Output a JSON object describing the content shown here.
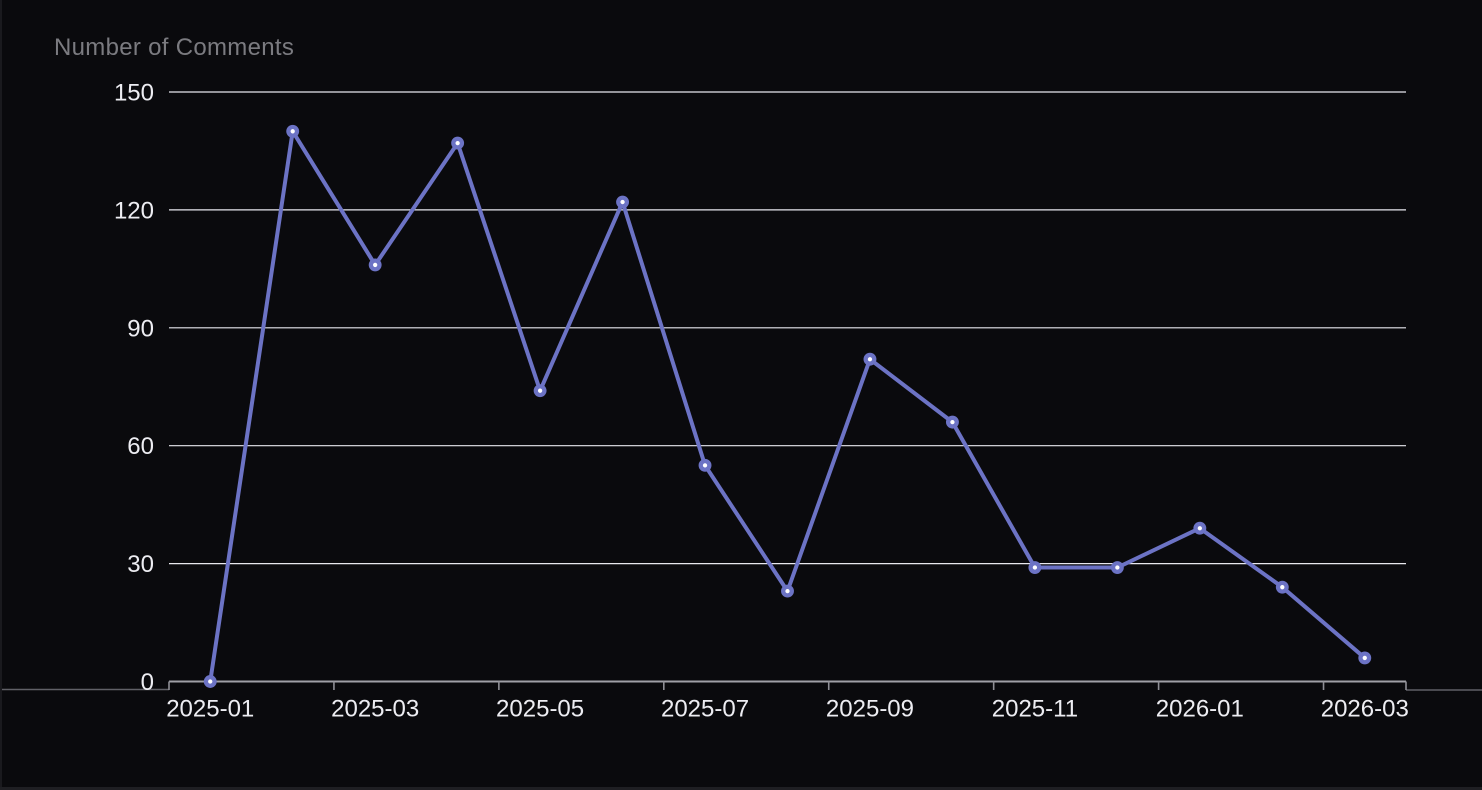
{
  "window": {
    "background": "#0a0a0d",
    "edge_color": "#1f1f23"
  },
  "chart_data": {
    "type": "line",
    "title": "Number of Comments",
    "x": [
      "2025-01",
      "2025-02",
      "2025-03",
      "2025-04",
      "2025-05",
      "2025-06",
      "2025-07",
      "2025-08",
      "2025-09",
      "2025-10",
      "2025-11",
      "2025-12",
      "2026-01",
      "2026-02",
      "2026-03"
    ],
    "series": [
      {
        "name": "Number of Comments",
        "values": [
          0,
          140,
          106,
          137,
          74,
          122,
          55,
          23,
          82,
          66,
          29,
          29,
          39,
          24,
          6
        ]
      }
    ],
    "xlabel": "",
    "ylabel": "",
    "ylim": [
      0,
      150
    ],
    "yticks": [
      0,
      30,
      60,
      90,
      120,
      150
    ],
    "x_labels_shown": [
      "2025-01",
      "2025-03",
      "2025-05",
      "2025-07",
      "2025-09",
      "2025-11",
      "2026-01",
      "2026-03"
    ],
    "x_label_interval": 2,
    "grid": true,
    "legend": false,
    "style": {
      "line_color": "#6c73c5",
      "marker_fill": "#ffffff",
      "grid_color": "#e8e8ee",
      "axis_color": "#a0a0a7",
      "tick_color": "#8f8f96",
      "divider_color": "#606067",
      "label_color": "#ededf2",
      "title_color": "#7b7b80"
    }
  }
}
